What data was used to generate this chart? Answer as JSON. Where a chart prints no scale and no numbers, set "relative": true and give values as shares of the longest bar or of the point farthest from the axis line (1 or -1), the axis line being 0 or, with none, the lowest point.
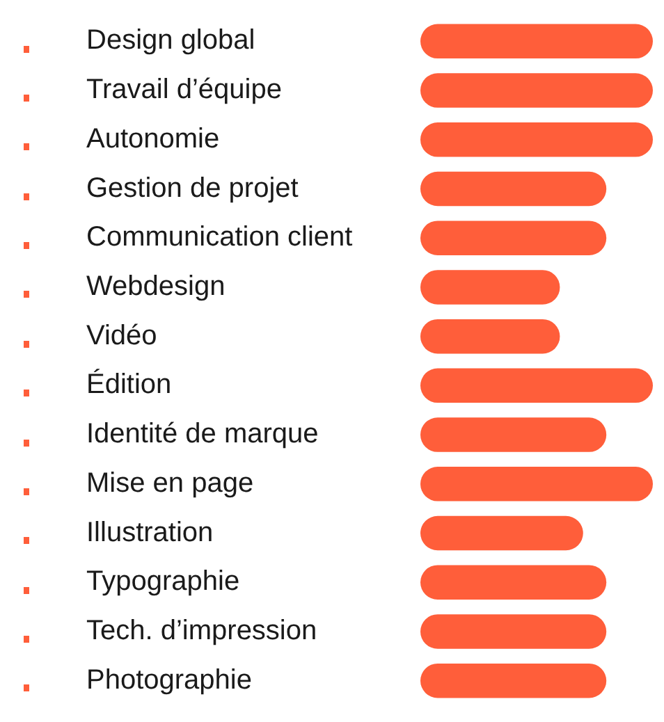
{
  "chart_data": {
    "type": "bar",
    "orientation": "horizontal",
    "relative": true,
    "legend": false,
    "categories": [
      "Design global",
      "Travail d’équipe",
      "Autonomie",
      "Gestion de projet",
      "Communication client",
      "Webdesign",
      "Vidéo",
      "Édition",
      "Identité de marque",
      "Mise en page",
      "Illustration",
      "Typographie",
      "Tech. d’impression",
      "Photographie"
    ],
    "color": "#ff5e3a",
    "values": [
      1,
      1,
      1,
      0.8,
      0.8,
      0.6,
      0.6,
      1,
      0.8,
      1,
      0.7,
      0.8,
      0.8,
      0.8
    ]
  }
}
